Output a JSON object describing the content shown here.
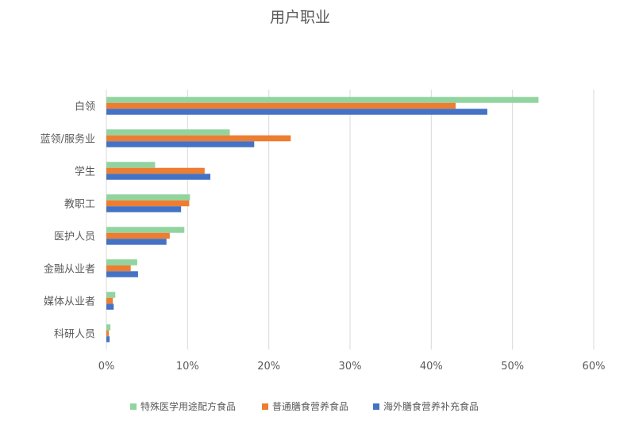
{
  "chart_data": {
    "type": "bar",
    "orientation": "horizontal",
    "title": "用户职业",
    "categories": [
      "白领",
      "蓝领/服务业",
      "学生",
      "教职工",
      "医护人员",
      "金融从业者",
      "媒体从业者",
      "科研人员"
    ],
    "series": [
      {
        "name": "特殊医学用途配方食品",
        "color": "#92d4a0",
        "values": [
          53.2,
          15.2,
          6.0,
          10.3,
          9.6,
          3.8,
          1.1,
          0.5
        ]
      },
      {
        "name": "普通膳食营养食品",
        "color": "#ed7d31",
        "values": [
          43.0,
          22.7,
          12.1,
          10.2,
          7.8,
          3.0,
          0.8,
          0.3
        ]
      },
      {
        "name": "海外膳食营养补充食品",
        "color": "#4472c4",
        "values": [
          46.9,
          18.2,
          12.8,
          9.2,
          7.4,
          3.9,
          0.9,
          0.4
        ]
      }
    ],
    "xlim": [
      0,
      60
    ],
    "xticks": [
      "0%",
      "10%",
      "20%",
      "30%",
      "40%",
      "50%",
      "60%"
    ],
    "grid": true,
    "legend_position": "bottom"
  }
}
